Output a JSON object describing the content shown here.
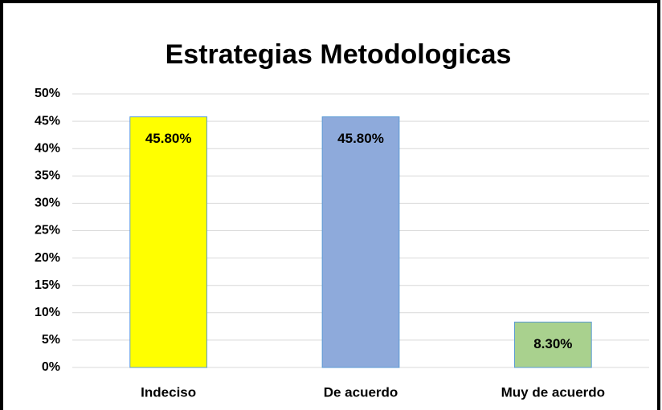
{
  "chart_data": {
    "type": "bar",
    "title": "Estrategias  Metodologicas",
    "categories": [
      "Indeciso",
      "De acuerdo",
      "Muy de acuerdo"
    ],
    "values": [
      45.8,
      45.8,
      8.3
    ],
    "value_labels": [
      "45.80%",
      "45.80%",
      "8.30%"
    ],
    "colors": [
      "#ffff00",
      "#8eaadb",
      "#a9d18e"
    ],
    "ylim": [
      0,
      50
    ],
    "yticks": [
      {
        "value": 0,
        "label": "0%"
      },
      {
        "value": 5,
        "label": "5%"
      },
      {
        "value": 10,
        "label": "10%"
      },
      {
        "value": 15,
        "label": "15%"
      },
      {
        "value": 20,
        "label": "20%"
      },
      {
        "value": 25,
        "label": "25%"
      },
      {
        "value": 30,
        "label": "30%"
      },
      {
        "value": 35,
        "label": "35%"
      },
      {
        "value": 40,
        "label": "40%"
      },
      {
        "value": 45,
        "label": "45%"
      },
      {
        "value": 50,
        "label": "50%"
      }
    ],
    "grid": true
  }
}
